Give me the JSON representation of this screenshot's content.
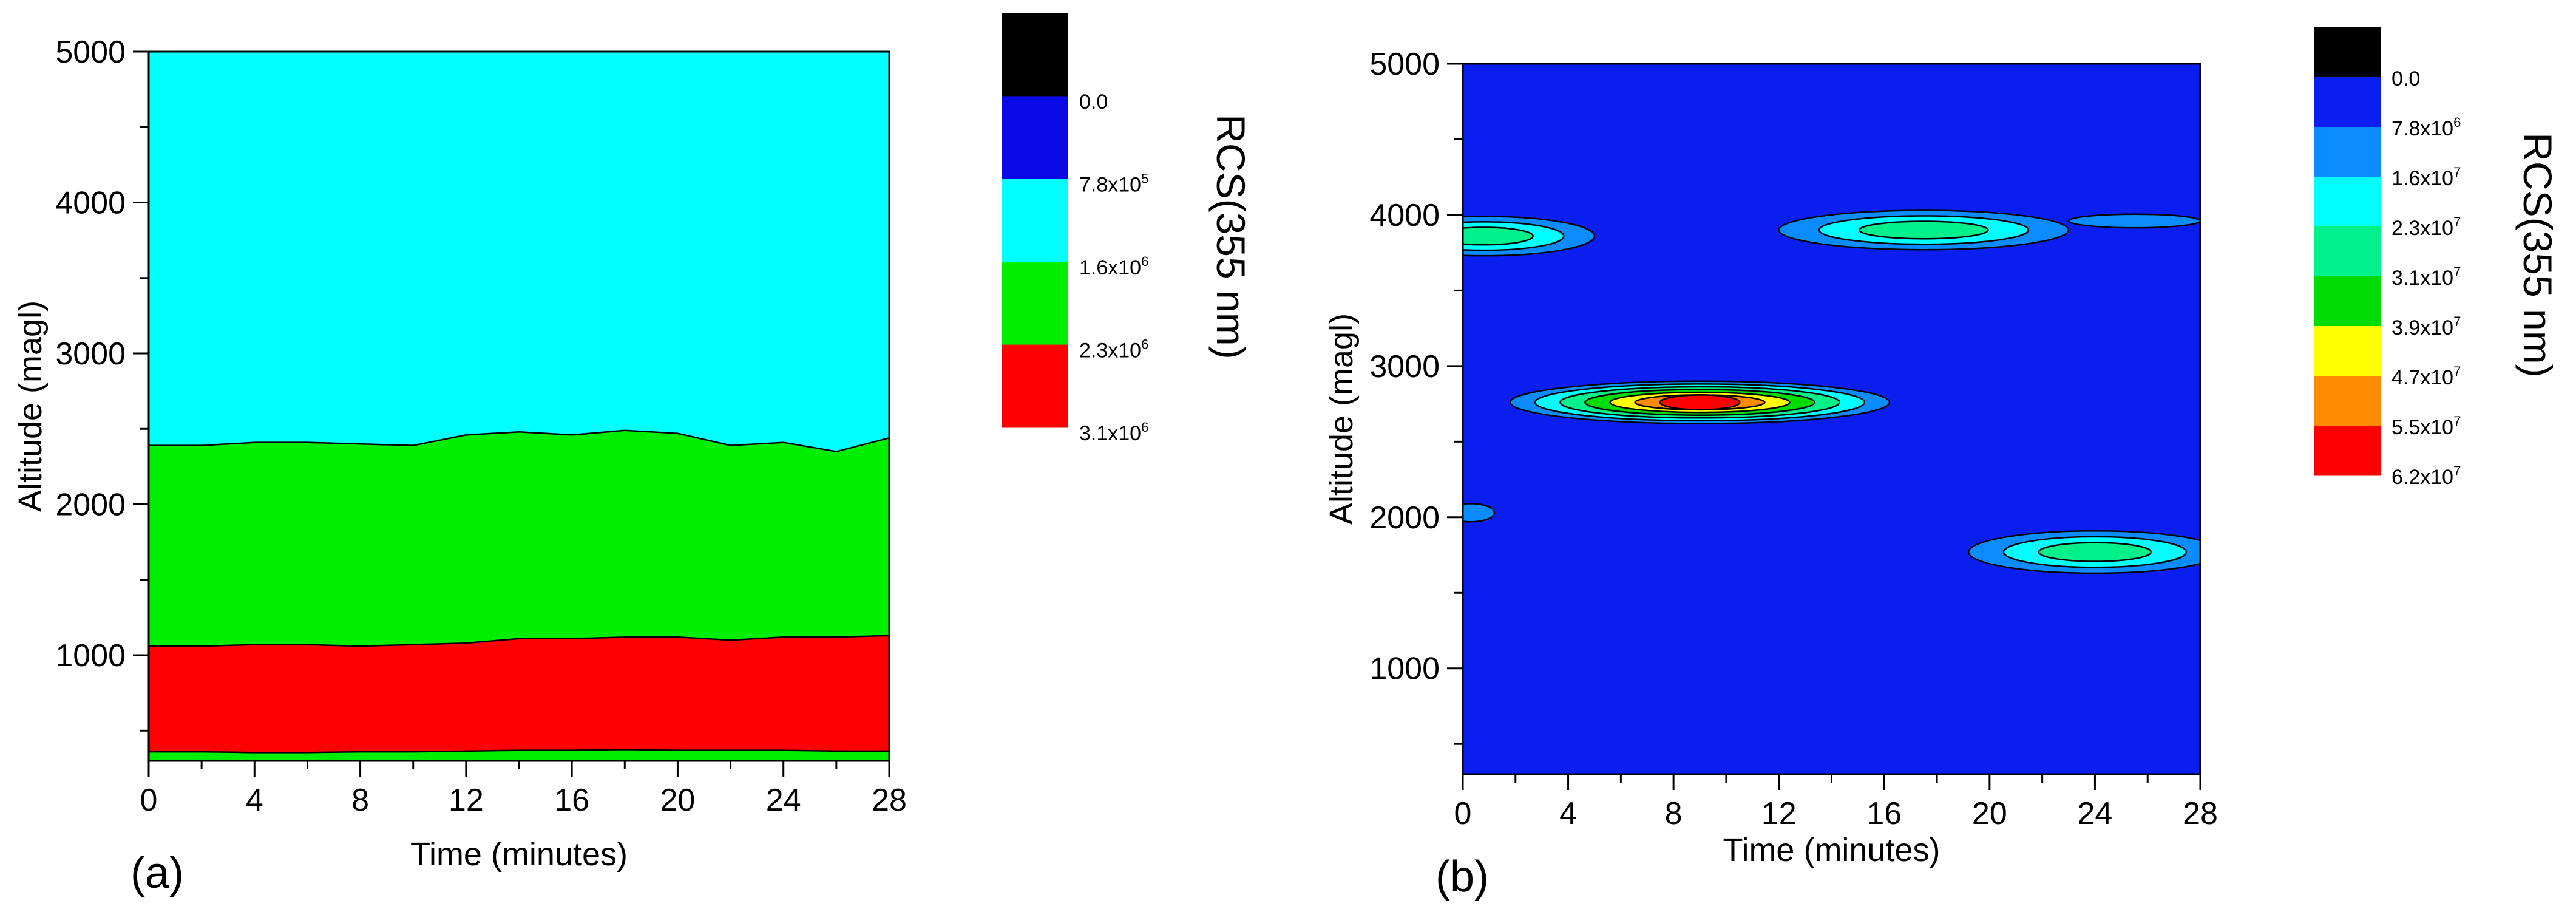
{
  "chart_data": [
    {
      "type": "heatmap",
      "panel_label": "(a)",
      "xlabel": "Time (minutes)",
      "ylabel": "Altitude (magl)",
      "xlim": [
        0,
        28
      ],
      "ylim": [
        300,
        5000
      ],
      "xticks": [
        0,
        4,
        8,
        12,
        16,
        20,
        24,
        28
      ],
      "yticks": [
        1000,
        2000,
        3000,
        4000,
        5000
      ],
      "colorbar": {
        "title": "RCS(355 nm)",
        "colors": [
          "#000000",
          "#0a0ae6",
          "#00ffff",
          "#00ee00",
          "#ff0000"
        ],
        "labels": [
          {
            "m": "0.0",
            "e": ""
          },
          {
            "m": "7.8x10",
            "e": "5"
          },
          {
            "m": "1.6x10",
            "e": "6"
          },
          {
            "m": "2.3x10",
            "e": "6"
          },
          {
            "m": "3.1x10",
            "e": "6"
          }
        ]
      },
      "time": [
        0,
        2,
        4,
        6,
        8,
        10,
        12,
        14,
        16,
        18,
        20,
        22,
        24,
        26,
        28
      ],
      "boundaries": [
        {
          "name": "top of 2.3x10^6 layer",
          "altitude": [
            2390,
            2390,
            2410,
            2410,
            2400,
            2390,
            2460,
            2480,
            2460,
            2490,
            2470,
            2390,
            2410,
            2350,
            2440
          ]
        },
        {
          "name": "top of 3.1x10^6 layer",
          "altitude": [
            1060,
            1060,
            1070,
            1070,
            1060,
            1070,
            1080,
            1110,
            1110,
            1120,
            1120,
            1100,
            1120,
            1120,
            1130
          ]
        },
        {
          "name": "bottom of 3.1x10^6 layer",
          "altitude": [
            360,
            360,
            355,
            355,
            360,
            360,
            365,
            370,
            370,
            375,
            370,
            370,
            370,
            365,
            365
          ]
        }
      ]
    },
    {
      "type": "heatmap",
      "panel_label": "(b)",
      "xlabel": "Time (minutes)",
      "ylabel": "Altitude (magl)",
      "xlim": [
        0,
        28
      ],
      "ylim": [
        300,
        5000
      ],
      "xticks": [
        0,
        4,
        8,
        12,
        16,
        20,
        24,
        28
      ],
      "yticks": [
        1000,
        2000,
        3000,
        4000,
        5000
      ],
      "background_level": "7.8x10^6",
      "colorbar": {
        "title": "RCS(355 nm)",
        "colors": [
          "#000000",
          "#0a1ef0",
          "#0a8cff",
          "#00ffff",
          "#00f08c",
          "#00dc00",
          "#ffff00",
          "#ff8c00",
          "#ff0000"
        ],
        "labels": [
          {
            "m": "0.0",
            "e": ""
          },
          {
            "m": "7.8x10",
            "e": "6"
          },
          {
            "m": "1.6x10",
            "e": "7"
          },
          {
            "m": "2.3x10",
            "e": "7"
          },
          {
            "m": "3.1x10",
            "e": "7"
          },
          {
            "m": "3.9x10",
            "e": "7"
          },
          {
            "m": "4.7x10",
            "e": "7"
          },
          {
            "m": "5.5x10",
            "e": "7"
          },
          {
            "m": "6.2x10",
            "e": "7"
          }
        ]
      },
      "features": [
        {
          "center_time": 0.8,
          "center_altitude": 3860,
          "half_width_min": 4.2,
          "half_height_m": 130,
          "peak_level": 4
        },
        {
          "center_time": 9.0,
          "center_altitude": 2760,
          "half_width_min": 7.2,
          "half_height_m": 140,
          "peak_level": 8
        },
        {
          "center_time": 17.5,
          "center_altitude": 3900,
          "half_width_min": 5.5,
          "half_height_m": 130,
          "peak_level": 4
        },
        {
          "center_time": 25.5,
          "center_altitude": 3960,
          "half_width_min": 2.5,
          "half_height_m": 45,
          "peak_level": 2
        },
        {
          "center_time": 24.0,
          "center_altitude": 1770,
          "half_width_min": 4.8,
          "half_height_m": 140,
          "peak_level": 4
        },
        {
          "center_time": 0.3,
          "center_altitude": 2030,
          "half_width_min": 0.9,
          "half_height_m": 60,
          "peak_level": 2
        }
      ]
    }
  ]
}
